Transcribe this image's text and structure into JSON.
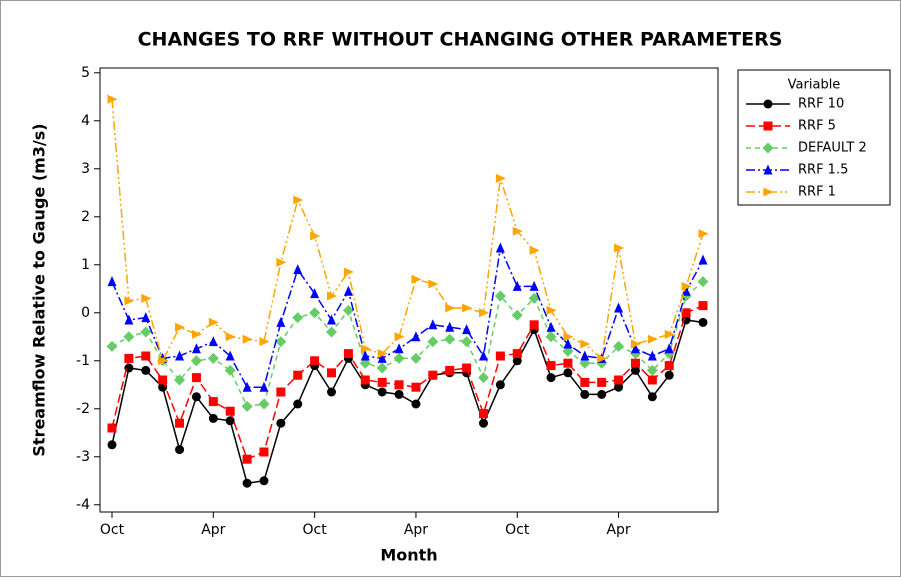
{
  "chart_data": {
    "type": "line",
    "title": "CHANGES TO RRF WITHOUT CHANGING OTHER PARAMETERS",
    "xlabel": "Month",
    "ylabel": "Streamflow Relative to Gauge (m3/s)",
    "legend_title": "Variable",
    "legend": "right",
    "categories": [
      "Oct",
      null,
      null,
      null,
      null,
      null,
      "Apr",
      null,
      null,
      null,
      null,
      null,
      "Oct",
      null,
      null,
      null,
      null,
      null,
      "Apr",
      null,
      null,
      null,
      null,
      null,
      "Oct",
      null,
      null,
      null,
      null,
      null,
      "Apr",
      null,
      null,
      null,
      null,
      null
    ],
    "ylim": [
      -4.15,
      5.1
    ],
    "yticks": [
      -4,
      -3,
      -2,
      -1,
      0,
      1,
      2,
      3,
      4,
      5
    ],
    "series": [
      {
        "name": "RRF 10",
        "color": "#000000",
        "marker": "circle",
        "line_style": "solid",
        "values": [
          -2.75,
          -1.15,
          -1.2,
          -1.55,
          -2.85,
          -1.75,
          -2.2,
          -2.25,
          -3.55,
          -3.5,
          -2.3,
          -1.9,
          -1.1,
          -1.65,
          -0.95,
          -1.5,
          -1.65,
          -1.7,
          -1.9,
          -1.3,
          -1.25,
          -1.25,
          -2.3,
          -1.5,
          -1.0,
          -0.35,
          -1.35,
          -1.25,
          -1.7,
          -1.7,
          -1.55,
          -1.2,
          -1.75,
          -1.3,
          -0.15,
          -0.2
        ]
      },
      {
        "name": "RRF 5",
        "color": "#ff0000",
        "marker": "square",
        "line_style": "dashed",
        "values": [
          -2.4,
          -0.95,
          -0.9,
          -1.4,
          -2.3,
          -1.35,
          -1.85,
          -2.05,
          -3.05,
          -2.9,
          -1.65,
          -1.3,
          -1.0,
          -1.25,
          -0.85,
          -1.4,
          -1.45,
          -1.5,
          -1.55,
          -1.3,
          -1.2,
          -1.15,
          -2.1,
          -0.9,
          -0.85,
          -0.25,
          -1.1,
          -1.05,
          -1.45,
          -1.45,
          -1.4,
          -1.05,
          -1.4,
          -1.1,
          0.0,
          0.15
        ]
      },
      {
        "name": "DEFAULT 2",
        "color": "#66cc66",
        "marker": "diamond",
        "line_style": "short-dashed",
        "values": [
          -0.7,
          -0.5,
          -0.4,
          -1.0,
          -1.4,
          -1.0,
          -0.95,
          -1.2,
          -1.95,
          -1.9,
          -0.6,
          -0.1,
          0.0,
          -0.4,
          0.05,
          -1.05,
          -1.15,
          -0.95,
          -0.95,
          -0.6,
          -0.55,
          -0.6,
          -1.35,
          0.35,
          -0.05,
          0.3,
          -0.5,
          -0.8,
          -1.05,
          -1.05,
          -0.7,
          -0.85,
          -1.2,
          -0.85,
          0.35,
          0.65
        ]
      },
      {
        "name": "RRF 1.5",
        "color": "#0000ff",
        "marker": "triangle-up",
        "line_style": "dash-dot",
        "values": [
          0.65,
          -0.15,
          -0.1,
          -0.95,
          -0.9,
          -0.75,
          -0.6,
          -0.9,
          -1.55,
          -1.55,
          -0.2,
          0.9,
          0.4,
          -0.15,
          0.45,
          -0.9,
          -0.95,
          -0.75,
          -0.5,
          -0.25,
          -0.3,
          -0.35,
          -0.9,
          1.35,
          0.55,
          0.55,
          -0.3,
          -0.65,
          -0.9,
          -0.95,
          0.1,
          -0.75,
          -0.9,
          -0.75,
          0.45,
          1.1
        ]
      },
      {
        "name": "RRF 1",
        "color": "#ffa500",
        "marker": "triangle-right",
        "line_style": "dash-dot-dot",
        "values": [
          4.45,
          0.25,
          0.3,
          -1.0,
          -0.3,
          -0.45,
          -0.2,
          -0.5,
          -0.55,
          -0.6,
          1.05,
          2.35,
          1.6,
          0.35,
          0.85,
          -0.75,
          -0.85,
          -0.5,
          0.7,
          0.6,
          0.1,
          0.1,
          0.0,
          2.8,
          1.7,
          1.3,
          0.05,
          -0.5,
          -0.65,
          -0.95,
          1.35,
          -0.65,
          -0.55,
          -0.45,
          0.55,
          1.65
        ]
      }
    ]
  }
}
